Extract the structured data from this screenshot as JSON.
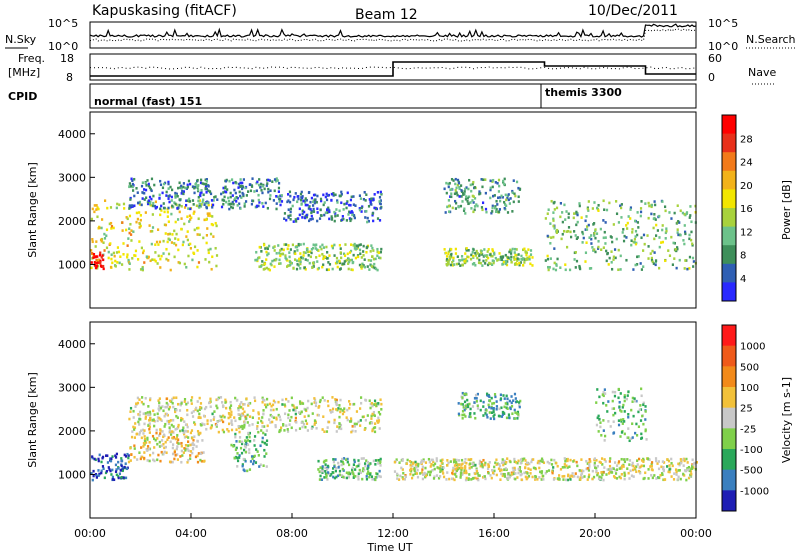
{
  "header": {
    "station": "Kapuskasing (fitACF)",
    "beam": "Beam 12",
    "date": "10/Dec/2011"
  },
  "noise_panel": {
    "left_label": "N.Sky",
    "right_label": "N.Search",
    "ticks_left": [
      "10^5",
      "10^0"
    ],
    "ticks_right": [
      "10^5",
      "10^0"
    ]
  },
  "freq_panel": {
    "left_label_line1": "Freq.",
    "left_label_line2": "[MHz]",
    "right_label": "Nave",
    "ticks_left": [
      "18",
      "8"
    ],
    "ticks_right": [
      "60",
      "0"
    ]
  },
  "cpid_panel": {
    "label": "CPID",
    "segments": [
      {
        "name": "normal (fast) 151",
        "start_hour": 0
      },
      {
        "name": "themis 3300",
        "start_hour": 18
      }
    ]
  },
  "power_panel": {
    "ylabel": "Slant Range [km]",
    "colorbar_label": "Power [dB]",
    "colorbar_ticks": [
      "28",
      "24",
      "20",
      "16",
      "12",
      "8",
      "4"
    ],
    "colors": [
      "#2929ff",
      "#2f5fb3",
      "#3e8f5a",
      "#6cc28a",
      "#a8d23c",
      "#f2e600",
      "#f2b21a",
      "#f27a1a",
      "#e8301a",
      "#ff0000"
    ]
  },
  "velocity_panel": {
    "ylabel": "Slant Range [km]",
    "colorbar_label": "Velocity [m s-1]",
    "colorbar_ticks": [
      "1000",
      "500",
      "100",
      "25",
      "-25",
      "-100",
      "-500",
      "-1000"
    ],
    "colors": [
      "#1e1eb4",
      "#3a7fbf",
      "#2aa85a",
      "#7fd04a",
      "#c8c8c8",
      "#f2c13a",
      "#f28a1a",
      "#ef5a1a",
      "#ff1a1a"
    ]
  },
  "xaxis": {
    "label": "Time UT",
    "ticks": [
      "00:00",
      "04:00",
      "08:00",
      "12:00",
      "16:00",
      "20:00",
      "00:00"
    ]
  },
  "chart_data": [
    {
      "type": "heatmap",
      "title": "Power [dB]",
      "ylabel": "Slant Range [km]",
      "xlabel": "Time UT",
      "xlim": [
        0,
        24
      ],
      "ylim": [
        0,
        4500
      ],
      "ytick_labels": [
        "1000",
        "2000",
        "3000",
        "4000"
      ],
      "colorbar_range": [
        0,
        30
      ],
      "regions": [
        {
          "t_start": 0.0,
          "t_end": 5.0,
          "range_km": [
            900,
            2500
          ],
          "value": 16
        },
        {
          "t_start": 0.0,
          "t_end": 0.5,
          "range_km": [
            900,
            1300
          ],
          "value": 28
        },
        {
          "t_start": 1.5,
          "t_end": 7.5,
          "range_km": [
            2300,
            3000
          ],
          "value": 6
        },
        {
          "t_start": 7.5,
          "t_end": 11.5,
          "range_km": [
            2000,
            2700
          ],
          "value": 5
        },
        {
          "t_start": 6.5,
          "t_end": 11.5,
          "range_km": [
            900,
            1500
          ],
          "value": 12
        },
        {
          "t_start": 14.0,
          "t_end": 17.5,
          "range_km": [
            1000,
            1400
          ],
          "value": 12
        },
        {
          "t_start": 14.0,
          "t_end": 17.0,
          "range_km": [
            2200,
            3000
          ],
          "value": 8
        },
        {
          "t_start": 18.0,
          "t_end": 24.0,
          "range_km": [
            900,
            2500
          ],
          "value": 10
        }
      ]
    },
    {
      "type": "heatmap",
      "title": "Velocity [m s-1]",
      "ylabel": "Slant Range [km]",
      "xlabel": "Time UT",
      "xlim": [
        0,
        24
      ],
      "ylim": [
        0,
        4500
      ],
      "ytick_labels": [
        "1000",
        "2000",
        "3000",
        "4000"
      ],
      "colorbar_range": [
        -1000,
        1000
      ],
      "regions": [
        {
          "t_start": 0.0,
          "t_end": 1.5,
          "range_km": [
            900,
            1500
          ],
          "value": -800
        },
        {
          "t_start": 1.5,
          "t_end": 4.5,
          "range_km": [
            1300,
            2000
          ],
          "value": 150
        },
        {
          "t_start": 1.5,
          "t_end": 11.5,
          "range_km": [
            2000,
            2800
          ],
          "value": 0
        },
        {
          "t_start": 5.5,
          "t_end": 7.0,
          "range_km": [
            1100,
            2000
          ],
          "value": -300
        },
        {
          "t_start": 9.0,
          "t_end": 11.5,
          "range_km": [
            900,
            1400
          ],
          "value": -300
        },
        {
          "t_start": 14.5,
          "t_end": 17.0,
          "range_km": [
            2300,
            2900
          ],
          "value": -400
        },
        {
          "t_start": 12.0,
          "t_end": 24.0,
          "range_km": [
            900,
            1400
          ],
          "value": 0
        },
        {
          "t_start": 20.0,
          "t_end": 22.0,
          "range_km": [
            1800,
            3000
          ],
          "value": -300
        }
      ]
    }
  ]
}
